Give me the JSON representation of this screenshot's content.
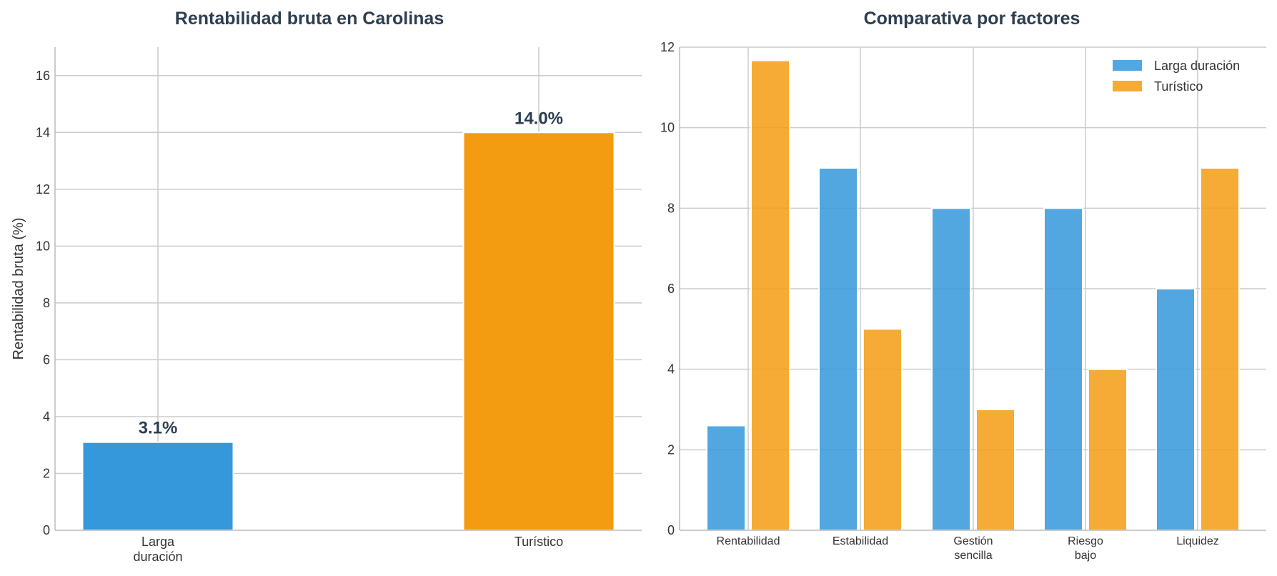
{
  "chart_data": [
    {
      "type": "bar",
      "title": "Rentabilidad bruta en Carolinas",
      "ylabel": "Rentabilidad bruta (%)",
      "xlabel": "",
      "ylim": [
        0,
        17
      ],
      "yticks": [
        0,
        2,
        4,
        6,
        8,
        10,
        12,
        14,
        16
      ],
      "categories": [
        [
          "Larga",
          "duración"
        ],
        [
          "Turístico"
        ]
      ],
      "values": [
        3.1,
        14.0
      ],
      "value_labels": [
        "3.1%",
        "14.0%"
      ],
      "colors": [
        "#3498db",
        "#f39c12"
      ],
      "grid": true
    },
    {
      "type": "bar",
      "title": "Comparativa por factores",
      "xlabel": "",
      "ylabel": "",
      "ylim": [
        0,
        12
      ],
      "yticks": [
        0,
        2,
        4,
        6,
        8,
        10,
        12
      ],
      "categories": [
        [
          "Rentabilidad"
        ],
        [
          "Estabilidad"
        ],
        [
          "Gestión",
          "sencilla"
        ],
        [
          "Riesgo",
          "bajo"
        ],
        [
          "Liquidez"
        ]
      ],
      "series": [
        {
          "name": "Larga duración",
          "values": [
            2.6,
            9,
            8,
            8,
            6
          ],
          "color": "#3498db"
        },
        {
          "name": "Turístico",
          "values": [
            11.67,
            5,
            3,
            4,
            9
          ],
          "color": "#f39c12"
        }
      ],
      "legend_position": "top-right",
      "grid": true
    }
  ]
}
